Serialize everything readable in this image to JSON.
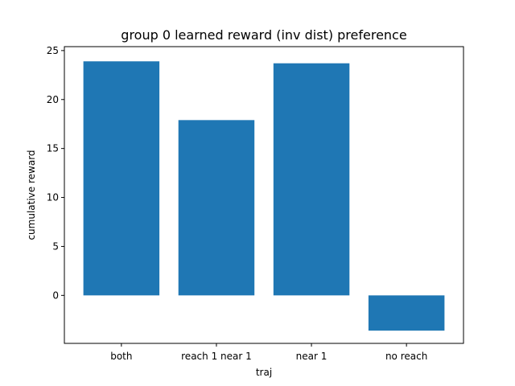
{
  "chart_data": {
    "type": "bar",
    "title": "group 0 learned reward (inv dist) preference",
    "xlabel": "traj",
    "ylabel": "cumulative reward",
    "categories": [
      "both",
      "reach 1 near 1",
      "near 1",
      "no reach"
    ],
    "values": [
      23.9,
      17.9,
      23.7,
      -3.6
    ],
    "ylim": [
      -4.9,
      25.4
    ],
    "yticks": [
      0,
      5,
      10,
      15,
      20,
      25
    ],
    "grid": false,
    "bar_color": "#1f77b4"
  }
}
